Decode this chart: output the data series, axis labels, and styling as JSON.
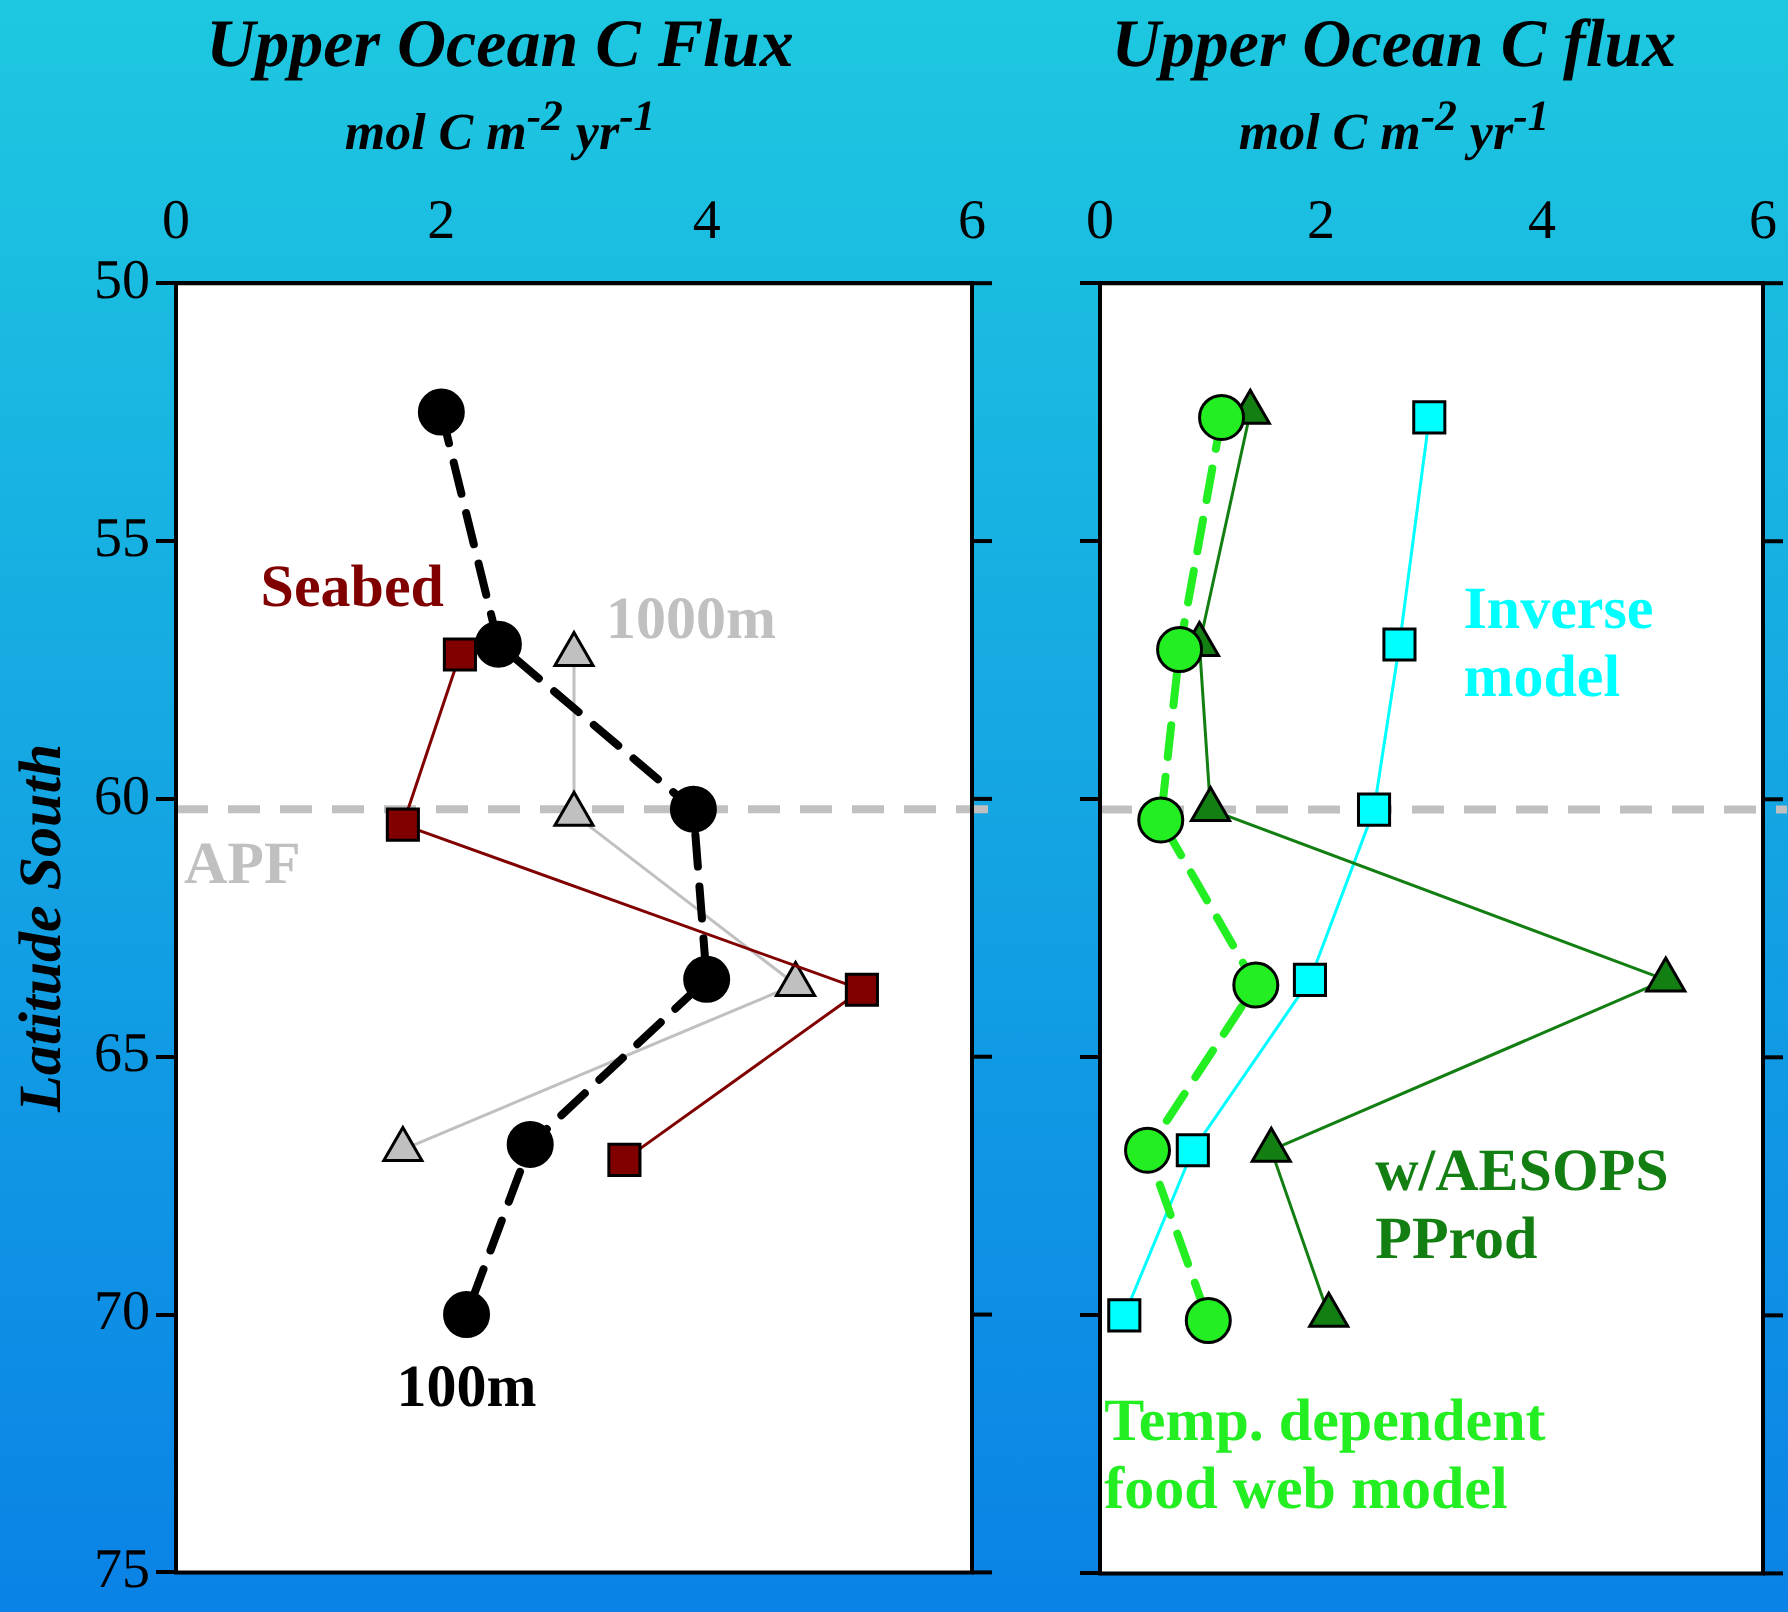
{
  "chart_data": [
    {
      "type": "line",
      "title": "Upper Ocean C Flux",
      "subtitle": "mol C m$^{-2}$ yr$^{-1}$",
      "ylabel": "Latitude South",
      "xlim": [
        0,
        6
      ],
      "xticks": [
        0,
        2,
        4,
        6
      ],
      "ylim": [
        75,
        50
      ],
      "yticks": [
        50,
        55,
        60,
        65,
        70,
        75
      ],
      "grid": false,
      "legend": false,
      "ref_lines": [
        {
          "axis": "y",
          "value": 60.2,
          "label": "APF",
          "color": "#c0c0c0",
          "line_style": "dashed"
        }
      ],
      "series": [
        {
          "name": "100m",
          "color": "#000000",
          "marker": "circle",
          "line_style": "dashed",
          "x": [
            2.0,
            2.43,
            3.9,
            4.0,
            2.67,
            2.19
          ],
          "values": [
            52.5,
            57.0,
            60.2,
            63.5,
            66.7,
            70.0
          ]
        },
        {
          "name": "Seabed",
          "color": "#800000",
          "marker": "square",
          "line_style": "solid",
          "x": [
            2.14,
            1.71,
            5.17,
            3.38
          ],
          "values": [
            57.2,
            60.5,
            63.7,
            67.0
          ]
        },
        {
          "name": "1000m",
          "color": "#c0c0c0",
          "marker": "triangle",
          "line_style": "solid",
          "x": [
            3.0,
            3.0,
            4.67,
            1.71
          ],
          "values": [
            57.2,
            60.3,
            63.6,
            66.8
          ]
        }
      ]
    },
    {
      "type": "line",
      "title": "Upper Ocean C flux",
      "subtitle": "mol C m$^{-2}$ yr$^{-1}$",
      "tick_labels": "x",
      "xlim": [
        0,
        6
      ],
      "xticks": [
        0,
        2,
        4,
        6
      ],
      "ylim": [
        75,
        50
      ],
      "yticks": [
        50,
        55,
        60,
        65,
        70,
        75
      ],
      "grid": false,
      "legend": false,
      "ref_lines": [
        {
          "axis": "y",
          "value": 60.2,
          "color": "#c0c0c0",
          "line_style": "dashed"
        }
      ],
      "series": [
        {
          "name": "Temp. dependent food web model",
          "color": "#22ee22",
          "marker": "circle",
          "line_style": "dashed",
          "x": [
            1.1,
            0.72,
            0.55,
            1.41,
            0.43,
            0.98
          ],
          "values": [
            52.6,
            57.1,
            60.4,
            63.6,
            66.8,
            70.1
          ]
        },
        {
          "name": "w/AESOPS PProd",
          "color": "#137f13",
          "marker": "triangle",
          "line_style": "solid",
          "x": [
            1.36,
            0.9,
            1.0,
            5.12,
            1.55,
            2.07
          ],
          "values": [
            52.5,
            57.0,
            60.2,
            63.5,
            66.8,
            70.0
          ]
        },
        {
          "name": "Inverse model",
          "color": "#00ffff",
          "marker": "square",
          "line_style": "solid",
          "x": [
            2.98,
            2.71,
            2.48,
            1.9,
            0.84,
            0.22
          ],
          "values": [
            52.6,
            57.0,
            60.2,
            63.5,
            66.8,
            70.0
          ]
        }
      ]
    }
  ]
}
